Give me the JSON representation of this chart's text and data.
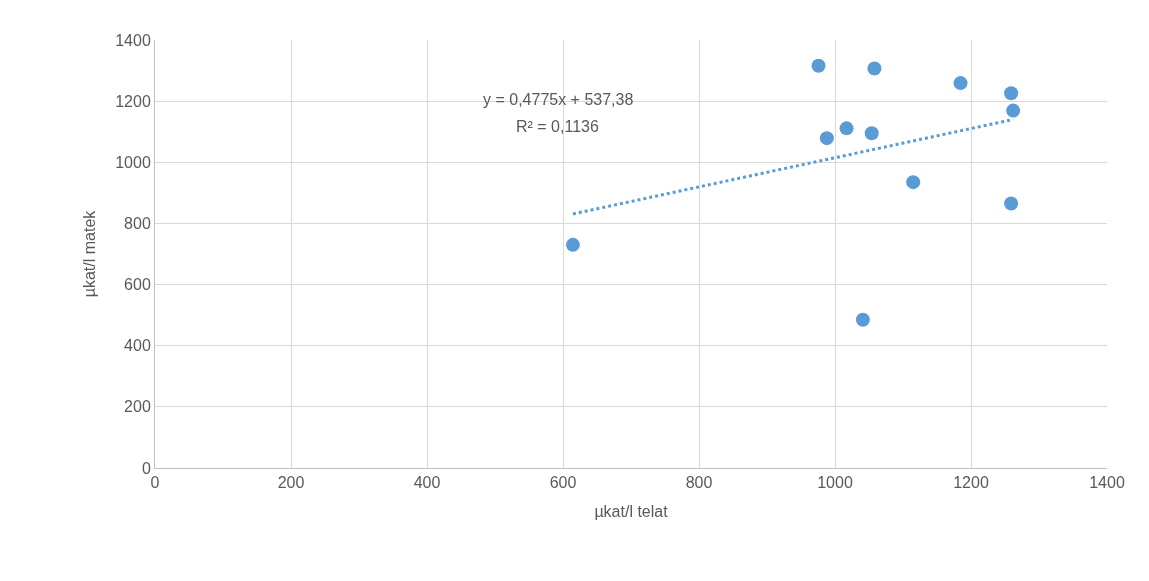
{
  "chart_data": {
    "type": "scatter",
    "xlabel": "µkat/l telat",
    "ylabel": "µkat/l matek",
    "xlim": [
      0,
      1400
    ],
    "xticks": [
      0,
      200,
      400,
      600,
      800,
      1000,
      1200,
      1400
    ],
    "ylim": [
      0,
      1400
    ],
    "yticks": [
      0,
      200,
      400,
      600,
      800,
      1000,
      1200,
      1400
    ],
    "grid": true,
    "marker": "circle",
    "series": [
      {
        "color": "#5b9bd5",
        "x": [
          614.6,
          975.8,
          1058,
          1184.6,
          1259,
          1262,
          1017,
          988,
          1054,
          1115,
          1259,
          1041
        ],
        "values": [
          730,
          1316,
          1307,
          1259,
          1226,
          1169,
          1111,
          1079,
          1095,
          935,
          865,
          485
        ]
      },
      {
        "type": "line",
        "color": "#5b9bd5",
        "line_style": "dotted",
        "marker": "none",
        "x": [
          614.6,
          1262
        ],
        "values": [
          831,
          1140
        ]
      }
    ],
    "annotations": [
      "y = 0,4775x + 537,38",
      "R² = 0,1136"
    ]
  }
}
